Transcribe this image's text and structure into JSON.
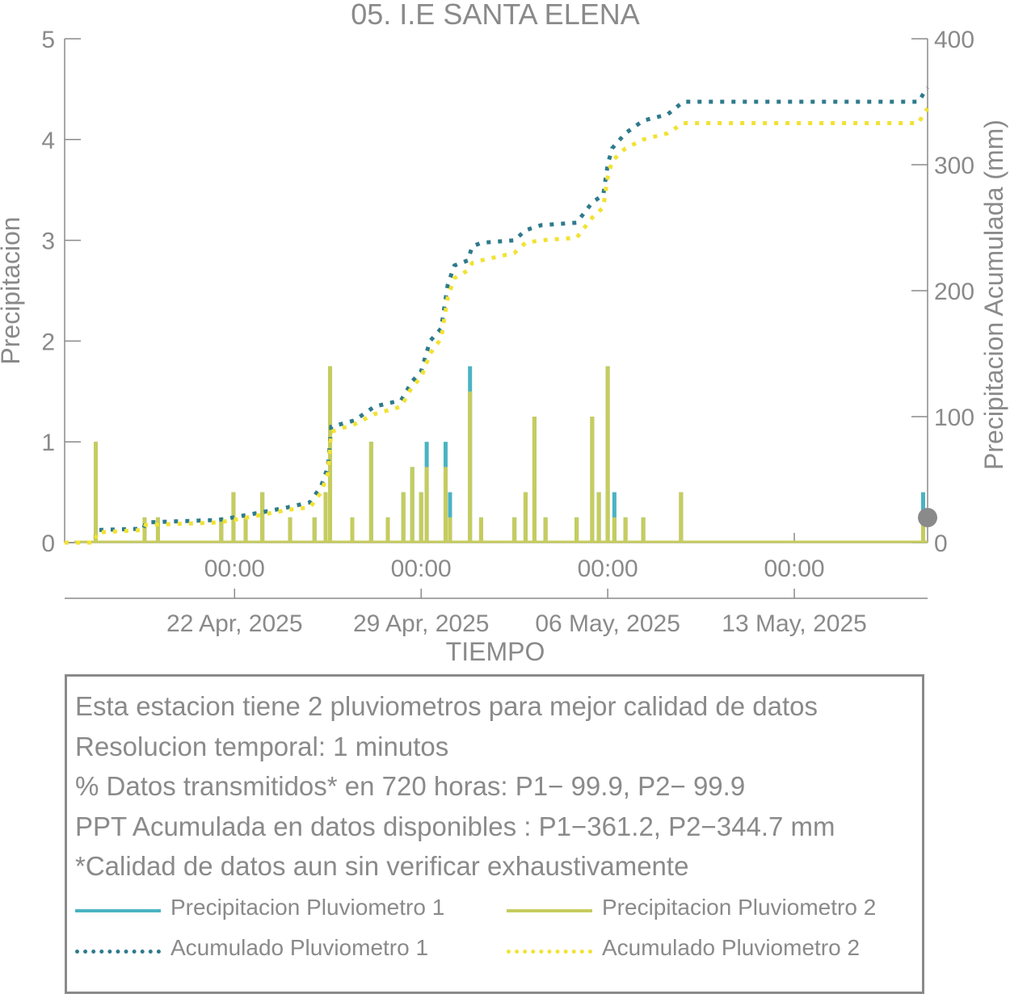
{
  "chart_data": {
    "type": "bar",
    "title": "05. I.E SANTA ELENA",
    "xlabel": "TIEMPO",
    "ylabel": "Precipitacion",
    "y2label": "Precipitacion Acumulada (mm)",
    "x_range": [
      "2025-04-15T15:00",
      "2025-05-18T00:00"
    ],
    "ylim": [
      0,
      5
    ],
    "y2lim": [
      0,
      400
    ],
    "yticks": [
      "0",
      "1",
      "2",
      "3",
      "4",
      "5"
    ],
    "y2ticks": [
      "0",
      "100",
      "200",
      "300",
      "400"
    ],
    "xticks": [
      {
        "t": "2025-04-22T00:00",
        "time": "00:00",
        "date": "22 Apr, 2025"
      },
      {
        "t": "2025-04-29T00:00",
        "time": "00:00",
        "date": "29 Apr, 2025"
      },
      {
        "t": "2025-05-06T00:00",
        "time": "00:00",
        "date": "06 May, 2025"
      },
      {
        "t": "2025-05-13T00:00",
        "time": "00:00",
        "date": "13 May, 2025"
      }
    ],
    "colors": {
      "p1": "#4ab3c2",
      "p2": "#c6cc5e",
      "acc1": "#2e7a8c",
      "acc2": "#f2e233"
    },
    "series": [
      {
        "name": "Precipitacion Pluviometro 1",
        "type": "bar",
        "axis": "left",
        "points": [
          [
            "2025-04-16T19:00",
            1.0
          ],
          [
            "2025-04-18T15:00",
            0.25
          ],
          [
            "2025-04-19T03:00",
            0.25
          ],
          [
            "2025-04-21T12:00",
            0.25
          ],
          [
            "2025-04-21T23:00",
            0.5
          ],
          [
            "2025-04-22T10:00",
            0.25
          ],
          [
            "2025-04-23T01:00",
            0.5
          ],
          [
            "2025-04-24T02:00",
            0.25
          ],
          [
            "2025-04-25T00:00",
            0.25
          ],
          [
            "2025-04-25T10:00",
            0.5
          ],
          [
            "2025-04-25T14:00",
            1.75
          ],
          [
            "2025-04-26T10:00",
            0.25
          ],
          [
            "2025-04-27T03:00",
            1.0
          ],
          [
            "2025-04-27T18:00",
            0.25
          ],
          [
            "2025-04-28T08:00",
            0.5
          ],
          [
            "2025-04-28T16:00",
            0.75
          ],
          [
            "2025-04-29T00:00",
            0.5
          ],
          [
            "2025-04-29T05:00",
            1.0
          ],
          [
            "2025-04-29T22:00",
            1.0
          ],
          [
            "2025-04-30T02:00",
            0.5
          ],
          [
            "2025-04-30T20:00",
            1.75
          ],
          [
            "2025-05-01T06:00",
            0.25
          ],
          [
            "2025-05-02T12:00",
            0.25
          ],
          [
            "2025-05-02T22:00",
            0.5
          ],
          [
            "2025-05-03T06:00",
            1.25
          ],
          [
            "2025-05-03T16:00",
            0.25
          ],
          [
            "2025-05-04T20:00",
            0.25
          ],
          [
            "2025-05-05T10:00",
            1.25
          ],
          [
            "2025-05-05T16:00",
            0.5
          ],
          [
            "2025-05-06T00:00",
            1.75
          ],
          [
            "2025-05-06T06:00",
            0.5
          ],
          [
            "2025-05-06T16:00",
            0.25
          ],
          [
            "2025-05-07T08:00",
            0.25
          ],
          [
            "2025-05-08T18:00",
            0.5
          ],
          [
            "2025-05-17T20:00",
            0.5
          ]
        ]
      },
      {
        "name": "Precipitacion Pluviometro 2",
        "type": "bar",
        "axis": "left",
        "points": [
          [
            "2025-04-16T19:00",
            1.0
          ],
          [
            "2025-04-18T15:00",
            0.25
          ],
          [
            "2025-04-19T03:00",
            0.25
          ],
          [
            "2025-04-21T12:00",
            0.25
          ],
          [
            "2025-04-21T23:00",
            0.5
          ],
          [
            "2025-04-22T10:00",
            0.25
          ],
          [
            "2025-04-23T01:00",
            0.5
          ],
          [
            "2025-04-24T02:00",
            0.25
          ],
          [
            "2025-04-25T00:00",
            0.25
          ],
          [
            "2025-04-25T10:00",
            0.5
          ],
          [
            "2025-04-25T14:00",
            1.75
          ],
          [
            "2025-04-26T10:00",
            0.25
          ],
          [
            "2025-04-27T03:00",
            1.0
          ],
          [
            "2025-04-27T18:00",
            0.25
          ],
          [
            "2025-04-28T08:00",
            0.5
          ],
          [
            "2025-04-28T16:00",
            0.75
          ],
          [
            "2025-04-29T00:00",
            0.5
          ],
          [
            "2025-04-29T05:00",
            0.75
          ],
          [
            "2025-04-29T22:00",
            0.75
          ],
          [
            "2025-04-30T02:00",
            0.25
          ],
          [
            "2025-04-30T20:00",
            1.5
          ],
          [
            "2025-05-01T06:00",
            0.25
          ],
          [
            "2025-05-02T12:00",
            0.25
          ],
          [
            "2025-05-02T22:00",
            0.5
          ],
          [
            "2025-05-03T06:00",
            1.25
          ],
          [
            "2025-05-03T16:00",
            0.25
          ],
          [
            "2025-05-04T20:00",
            0.25
          ],
          [
            "2025-05-05T10:00",
            1.25
          ],
          [
            "2025-05-05T16:00",
            0.5
          ],
          [
            "2025-05-06T00:00",
            1.75
          ],
          [
            "2025-05-06T06:00",
            0.25
          ],
          [
            "2025-05-06T16:00",
            0.25
          ],
          [
            "2025-05-07T08:00",
            0.25
          ],
          [
            "2025-05-08T18:00",
            0.5
          ],
          [
            "2025-05-17T20:00",
            0.25
          ]
        ]
      },
      {
        "name": "Acumulado Pluviometro 1",
        "type": "line",
        "axis": "right",
        "points": [
          [
            "2025-04-15T15:00",
            0
          ],
          [
            "2025-04-16T18:00",
            0
          ],
          [
            "2025-04-16T20:00",
            10
          ],
          [
            "2025-04-18T14:00",
            11
          ],
          [
            "2025-04-18T16:00",
            16
          ],
          [
            "2025-04-21T10:00",
            18
          ],
          [
            "2025-04-21T23:00",
            20
          ],
          [
            "2025-04-23T00:00",
            24
          ],
          [
            "2025-04-24T00:00",
            28
          ],
          [
            "2025-04-24T20:00",
            32
          ],
          [
            "2025-04-25T06:00",
            45
          ],
          [
            "2025-04-25T12:00",
            60
          ],
          [
            "2025-04-25T15:00",
            92
          ],
          [
            "2025-04-26T12:00",
            97
          ],
          [
            "2025-04-27T06:00",
            108
          ],
          [
            "2025-04-28T06:00",
            113
          ],
          [
            "2025-04-28T16:00",
            128
          ],
          [
            "2025-04-29T00:00",
            136
          ],
          [
            "2025-04-29T08:00",
            160
          ],
          [
            "2025-04-29T18:00",
            170
          ],
          [
            "2025-04-30T00:00",
            205
          ],
          [
            "2025-04-30T06:00",
            220
          ],
          [
            "2025-04-30T18:00",
            224
          ],
          [
            "2025-04-30T22:00",
            235
          ],
          [
            "2025-05-01T06:00",
            238
          ],
          [
            "2025-05-02T12:00",
            240
          ],
          [
            "2025-05-02T22:00",
            248
          ],
          [
            "2025-05-03T12:00",
            252
          ],
          [
            "2025-05-04T20:00",
            254
          ],
          [
            "2025-05-05T10:00",
            270
          ],
          [
            "2025-05-05T20:00",
            276
          ],
          [
            "2025-05-06T00:00",
            300
          ],
          [
            "2025-05-06T04:00",
            313
          ],
          [
            "2025-05-06T16:00",
            325
          ],
          [
            "2025-05-07T08:00",
            335
          ],
          [
            "2025-05-08T06:00",
            340
          ],
          [
            "2025-05-08T20:00",
            350
          ],
          [
            "2025-05-17T16:00",
            350
          ],
          [
            "2025-05-17T20:00",
            356
          ],
          [
            "2025-05-18T00:00",
            361.2
          ]
        ]
      },
      {
        "name": "Acumulado Pluviometro 2",
        "type": "line",
        "axis": "right",
        "points": [
          [
            "2025-04-15T15:00",
            0
          ],
          [
            "2025-04-16T18:00",
            0
          ],
          [
            "2025-04-16T20:00",
            8
          ],
          [
            "2025-04-18T14:00",
            10
          ],
          [
            "2025-04-18T16:00",
            14
          ],
          [
            "2025-04-21T10:00",
            16
          ],
          [
            "2025-04-21T23:00",
            18
          ],
          [
            "2025-04-23T00:00",
            22
          ],
          [
            "2025-04-24T00:00",
            26
          ],
          [
            "2025-04-24T20:00",
            28
          ],
          [
            "2025-04-25T06:00",
            40
          ],
          [
            "2025-04-25T12:00",
            55
          ],
          [
            "2025-04-25T15:00",
            88
          ],
          [
            "2025-04-26T12:00",
            94
          ],
          [
            "2025-04-27T06:00",
            102
          ],
          [
            "2025-04-28T06:00",
            108
          ],
          [
            "2025-04-28T16:00",
            124
          ],
          [
            "2025-04-29T00:00",
            131
          ],
          [
            "2025-04-29T08:00",
            150
          ],
          [
            "2025-04-29T18:00",
            162
          ],
          [
            "2025-04-30T00:00",
            195
          ],
          [
            "2025-04-30T06:00",
            210
          ],
          [
            "2025-04-30T18:00",
            216
          ],
          [
            "2025-04-30T22:00",
            222
          ],
          [
            "2025-05-01T06:00",
            224
          ],
          [
            "2025-05-02T12:00",
            230
          ],
          [
            "2025-05-02T22:00",
            238
          ],
          [
            "2025-05-03T12:00",
            240
          ],
          [
            "2025-05-04T20:00",
            242
          ],
          [
            "2025-05-05T10:00",
            258
          ],
          [
            "2025-05-05T20:00",
            266
          ],
          [
            "2025-05-06T00:00",
            290
          ],
          [
            "2025-05-06T04:00",
            303
          ],
          [
            "2025-05-06T16:00",
            313
          ],
          [
            "2025-05-07T08:00",
            320
          ],
          [
            "2025-05-08T06:00",
            325
          ],
          [
            "2025-05-08T20:00",
            333
          ],
          [
            "2025-05-17T16:00",
            333
          ],
          [
            "2025-05-17T20:00",
            340
          ],
          [
            "2025-05-18T00:00",
            344.7
          ]
        ]
      }
    ]
  },
  "info": {
    "lines": [
      "Esta estacion tiene 2 pluviometros para mejor calidad de datos",
      "Resolucion temporal: 1 minutos",
      "% Datos transmitidos* en 720 horas: P1− 99.9, P2− 99.9",
      "PPT Acumulada en datos disponibles : P1−361.2, P2−344.7 mm",
      "*Calidad de datos aun sin verificar exhaustivamente"
    ]
  },
  "legend": {
    "items": [
      {
        "label": "Precipitacion Pluviometro 1",
        "color": "#4ab3c2",
        "style": "solid"
      },
      {
        "label": "Precipitacion Pluviometro 2",
        "color": "#c6cc5e",
        "style": "solid"
      },
      {
        "label": "Acumulado Pluviometro 1",
        "color": "#2e7a8c",
        "style": "dotted"
      },
      {
        "label": "Acumulado Pluviometro 2",
        "color": "#f2e233",
        "style": "dotted"
      }
    ]
  },
  "marker": {
    "color": "#8a8a8a",
    "icon": "gray-circle-marker"
  }
}
